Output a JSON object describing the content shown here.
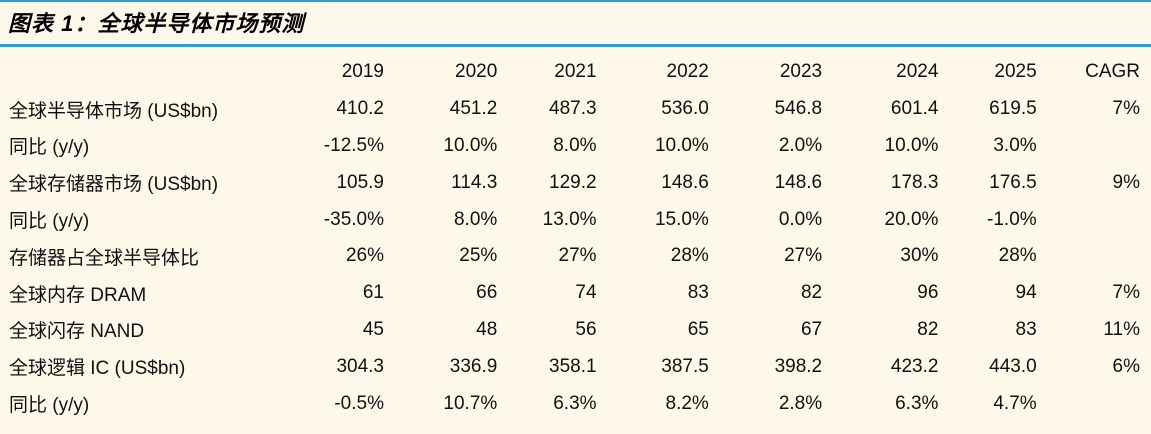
{
  "title": "图表 1：全球半导体市场预测",
  "header": [
    "2019",
    "2020",
    "2021",
    "2022",
    "2023",
    "2024",
    "2025",
    "CAGR"
  ],
  "rows": [
    {
      "label": "全球半导体市场 (US$bn)",
      "values": [
        "410.2",
        "451.2",
        "487.3",
        "536.0",
        "546.8",
        "601.4",
        "619.5",
        "7%"
      ]
    },
    {
      "label": "同比 (y/y)",
      "values": [
        "-12.5%",
        "10.0%",
        "8.0%",
        "10.0%",
        "2.0%",
        "10.0%",
        "3.0%",
        ""
      ]
    },
    {
      "label": "全球存储器市场 (US$bn)",
      "values": [
        "105.9",
        "114.3",
        "129.2",
        "148.6",
        "148.6",
        "178.3",
        "176.5",
        "9%"
      ]
    },
    {
      "label": "同比 (y/y)",
      "values": [
        "-35.0%",
        "8.0%",
        "13.0%",
        "15.0%",
        "0.0%",
        "20.0%",
        "-1.0%",
        ""
      ]
    },
    {
      "label": "存储器占全球半导体比",
      "values": [
        "26%",
        "25%",
        "27%",
        "28%",
        "27%",
        "30%",
        "28%",
        ""
      ]
    },
    {
      "label": "全球内存 DRAM",
      "values": [
        "61",
        "66",
        "74",
        "83",
        "82",
        "96",
        "94",
        "7%"
      ]
    },
    {
      "label": "全球闪存 NAND",
      "values": [
        "45",
        "48",
        "56",
        "65",
        "67",
        "82",
        "83",
        "11%"
      ]
    },
    {
      "label": "全球逻辑 IC (US$bn)",
      "values": [
        "304.3",
        "336.9",
        "358.1",
        "387.5",
        "398.2",
        "423.2",
        "443.0",
        "6%"
      ]
    },
    {
      "label": "同比 (y/y)",
      "values": [
        "-0.5%",
        "10.7%",
        "6.3%",
        "8.2%",
        "2.8%",
        "6.3%",
        "4.7%",
        ""
      ]
    }
  ],
  "colors": {
    "background": "#fdf8ea",
    "rule": "#2b9de0",
    "text": "#111111"
  }
}
